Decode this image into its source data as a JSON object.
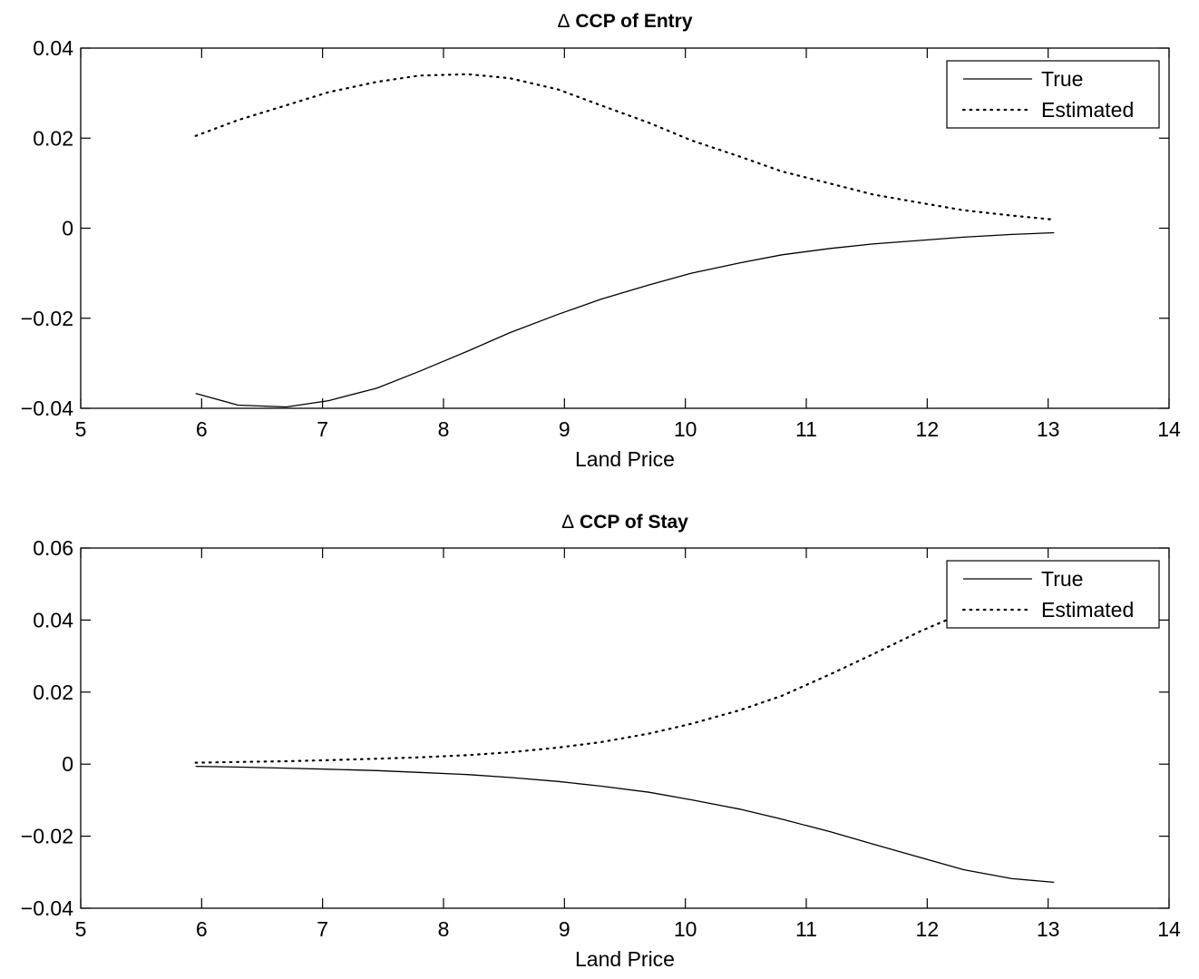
{
  "chart_data": [
    {
      "type": "line",
      "title_symbol": "Δ",
      "title": "CCP of Entry",
      "xlabel": "Land Price",
      "ylabel": "",
      "xlim": [
        5,
        14
      ],
      "ylim": [
        -0.04,
        0.04
      ],
      "xticks": [
        5,
        6,
        7,
        8,
        9,
        10,
        11,
        12,
        13,
        14
      ],
      "yticks": [
        -0.04,
        -0.02,
        0,
        0.02,
        0.04
      ],
      "ytick_labels": [
        "−0.04",
        "−0.02",
        "0",
        "0.02",
        "0.04"
      ],
      "grid": false,
      "legend_position": "top-right",
      "series": [
        {
          "name": "True",
          "style": "solid",
          "x": [
            5.95,
            6.3,
            6.7,
            7.05,
            7.45,
            7.8,
            8.2,
            8.55,
            8.95,
            9.3,
            9.7,
            10.05,
            10.45,
            10.8,
            11.2,
            11.55,
            11.95,
            12.3,
            12.7,
            13.05
          ],
          "y": [
            -0.0367,
            -0.0393,
            -0.0397,
            -0.0383,
            -0.0355,
            -0.0318,
            -0.0273,
            -0.0232,
            -0.0191,
            -0.0158,
            -0.0126,
            -0.01,
            -0.0077,
            -0.0059,
            -0.0045,
            -0.0035,
            -0.0027,
            -0.002,
            -0.0014,
            -0.001
          ]
        },
        {
          "name": "Estimated",
          "style": "dotted",
          "x": [
            5.95,
            6.3,
            6.7,
            7.05,
            7.45,
            7.8,
            8.2,
            8.55,
            8.95,
            9.3,
            9.7,
            10.05,
            10.45,
            10.8,
            11.2,
            11.55,
            11.95,
            12.3,
            12.7,
            13.05
          ],
          "y": [
            0.0205,
            0.024,
            0.0273,
            0.0302,
            0.0325,
            0.0339,
            0.0342,
            0.0333,
            0.0308,
            0.0273,
            0.0234,
            0.0195,
            0.0159,
            0.0126,
            0.0099,
            0.0075,
            0.0056,
            0.004,
            0.0028,
            0.0019
          ]
        }
      ]
    },
    {
      "type": "line",
      "title_symbol": "Δ",
      "title": "CCP of Stay",
      "xlabel": "Land Price",
      "ylabel": "",
      "xlim": [
        5,
        14
      ],
      "ylim": [
        -0.04,
        0.06
      ],
      "xticks": [
        5,
        6,
        7,
        8,
        9,
        10,
        11,
        12,
        13,
        14
      ],
      "yticks": [
        -0.04,
        -0.02,
        0,
        0.02,
        0.04,
        0.06
      ],
      "ytick_labels": [
        "−0.04",
        "−0.02",
        "0",
        "0.02",
        "0.04",
        "0.06"
      ],
      "grid": false,
      "legend_position": "top-right",
      "series": [
        {
          "name": "True",
          "style": "solid",
          "x": [
            5.95,
            6.3,
            6.7,
            7.05,
            7.45,
            7.8,
            8.2,
            8.55,
            8.95,
            9.3,
            9.7,
            10.05,
            10.45,
            10.8,
            11.2,
            11.55,
            11.95,
            12.3,
            12.7,
            13.05
          ],
          "y": [
            -0.0006,
            -0.0008,
            -0.0011,
            -0.0014,
            -0.0018,
            -0.0023,
            -0.0029,
            -0.0037,
            -0.0048,
            -0.0061,
            -0.0078,
            -0.0099,
            -0.0125,
            -0.0153,
            -0.0188,
            -0.0222,
            -0.026,
            -0.0293,
            -0.0318,
            -0.0328
          ]
        },
        {
          "name": "Estimated",
          "style": "dotted",
          "x": [
            5.95,
            6.3,
            6.7,
            7.05,
            7.45,
            7.8,
            8.2,
            8.55,
            8.95,
            9.3,
            9.7,
            10.05,
            10.45,
            10.8,
            11.2,
            11.55,
            11.95,
            12.3,
            12.7,
            13.05
          ],
          "y": [
            0.0004,
            0.0006,
            0.0008,
            0.0011,
            0.0015,
            0.0019,
            0.0025,
            0.0033,
            0.0046,
            0.0061,
            0.0085,
            0.0112,
            0.015,
            0.019,
            0.025,
            0.0305,
            0.037,
            0.042,
            0.0465,
            0.0495
          ]
        }
      ]
    }
  ]
}
